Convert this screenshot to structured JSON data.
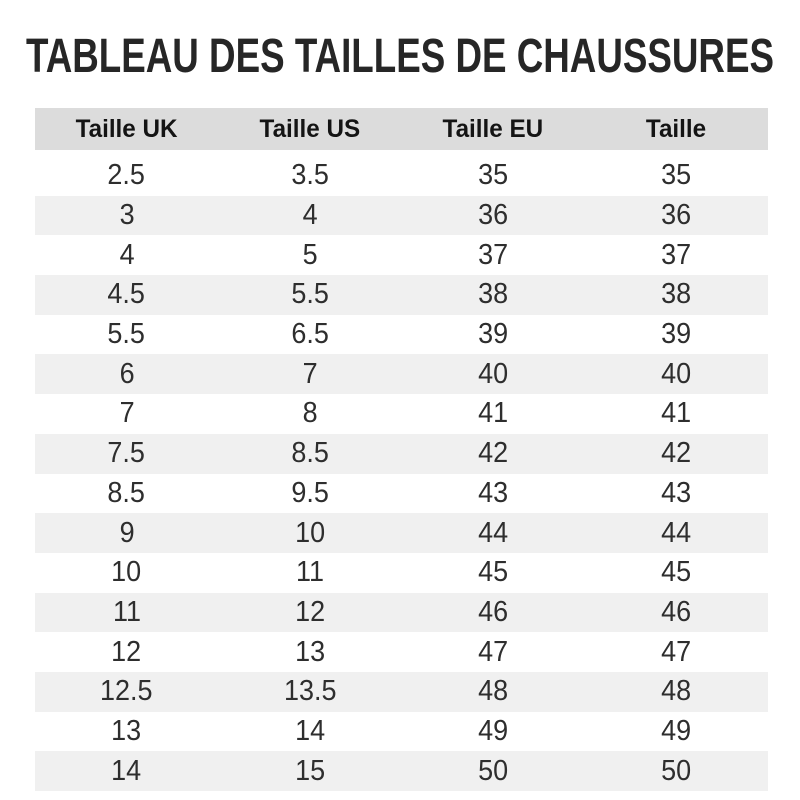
{
  "page": {
    "title": "TABLEAU DES TAILLES DE CHAUSSURES"
  },
  "table": {
    "headers": [
      "Taille UK",
      "Taille US",
      "Taille EU",
      "Taille"
    ],
    "rows": [
      [
        "2.5",
        "3.5",
        "35",
        "35"
      ],
      [
        "3",
        "4",
        "36",
        "36"
      ],
      [
        "4",
        "5",
        "37",
        "37"
      ],
      [
        "4.5",
        "5.5",
        "38",
        "38"
      ],
      [
        "5.5",
        "6.5",
        "39",
        "39"
      ],
      [
        "6",
        "7",
        "40",
        "40"
      ],
      [
        "7",
        "8",
        "41",
        "41"
      ],
      [
        "7.5",
        "8.5",
        "42",
        "42"
      ],
      [
        "8.5",
        "9.5",
        "43",
        "43"
      ],
      [
        "9",
        "10",
        "44",
        "44"
      ],
      [
        "10",
        "11",
        "45",
        "45"
      ],
      [
        "11",
        "12",
        "46",
        "46"
      ],
      [
        "12",
        "13",
        "47",
        "47"
      ],
      [
        "12.5",
        "13.5",
        "48",
        "48"
      ],
      [
        "13",
        "14",
        "49",
        "49"
      ],
      [
        "14",
        "15",
        "50",
        "50"
      ]
    ]
  },
  "colors": {
    "title_text": "#262626",
    "header_bg": "#dcdcdc",
    "header_text": "#141414",
    "stripe_bg": "#f0f0f0",
    "body_text": "#2e2e2e"
  }
}
